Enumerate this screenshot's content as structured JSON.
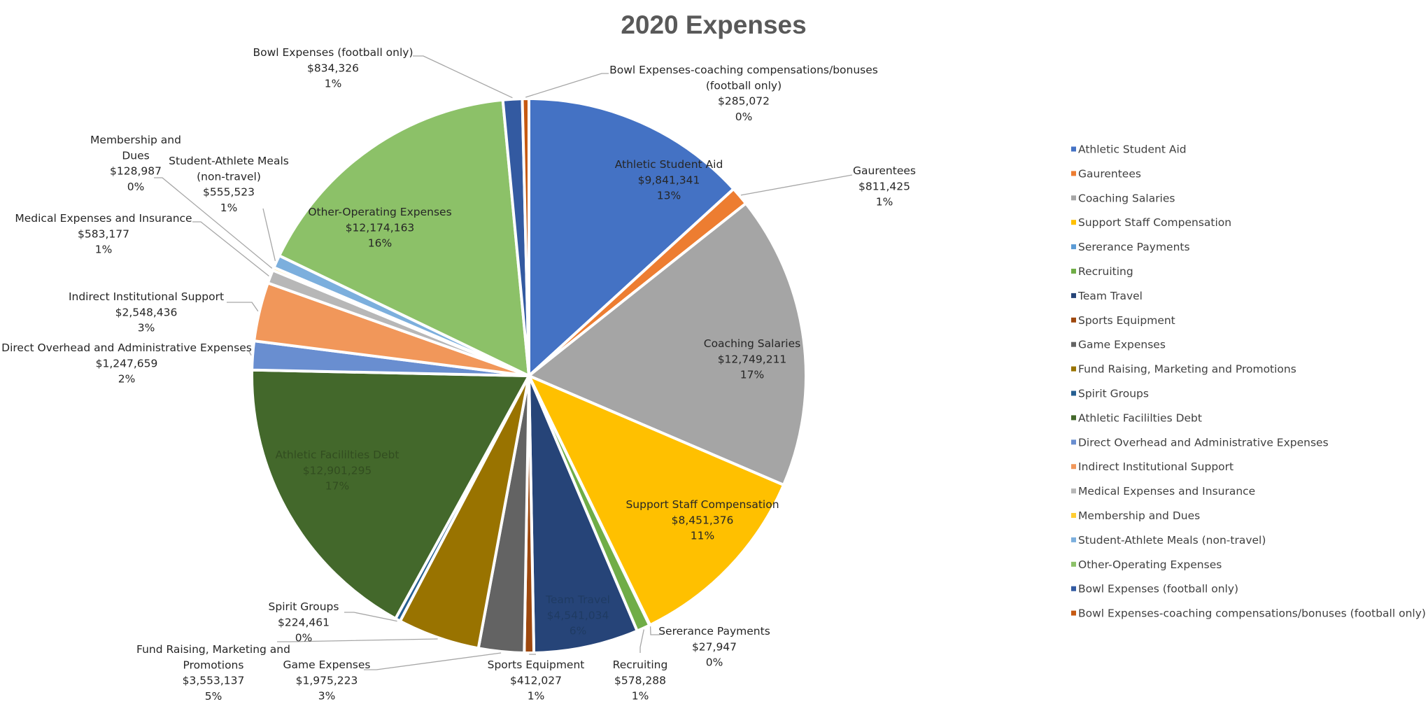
{
  "chart_data": {
    "type": "pie",
    "title": "2020 Expenses",
    "legend_position": "right",
    "slices": [
      {
        "name": "Athletic Student Aid",
        "value": 9841341,
        "value_label": "$9,841,341",
        "percent_label": "13%",
        "color": "#4472C4"
      },
      {
        "name": "Gaurentees",
        "value": 811425,
        "value_label": "$811,425",
        "percent_label": "1%",
        "color": "#ED7D31"
      },
      {
        "name": "Coaching Salaries",
        "value": 12749211,
        "value_label": "$12,749,211",
        "percent_label": "17%",
        "color": "#A5A5A5"
      },
      {
        "name": "Support Staff Compensation",
        "value": 8451376,
        "value_label": "$8,451,376",
        "percent_label": "11%",
        "color": "#FFC000"
      },
      {
        "name": "Sererance Payments",
        "value": 27947,
        "value_label": "$27,947",
        "percent_label": "0%",
        "color": "#5B9BD5"
      },
      {
        "name": "Recruiting",
        "value": 578288,
        "value_label": "$578,288",
        "percent_label": "1%",
        "color": "#70AD47"
      },
      {
        "name": "Team Travel",
        "value": 4541034,
        "value_label": "$4,541,034",
        "percent_label": "6%",
        "color": "#264478"
      },
      {
        "name": "Sports Equipment",
        "value": 412027,
        "value_label": "$412,027",
        "percent_label": "1%",
        "color": "#9E480E"
      },
      {
        "name": "Game Expenses",
        "value": 1975223,
        "value_label": "$1,975,223",
        "percent_label": "3%",
        "color": "#636363"
      },
      {
        "name": "Fund Raising, Marketing and Promotions",
        "value": 3553137,
        "value_label": "$3,553,137",
        "percent_label": "5%",
        "color": "#997300"
      },
      {
        "name": "Spirit Groups",
        "value": 224461,
        "value_label": "$224,461",
        "percent_label": "0%",
        "color": "#255E91"
      },
      {
        "name": "Athletic Facililties Debt",
        "value": 12901295,
        "value_label": "$12,901,295",
        "percent_label": "17%",
        "color": "#43682B"
      },
      {
        "name": "Direct Overhead and Administrative Expenses",
        "value": 1247659,
        "value_label": "$1,247,659",
        "percent_label": "2%",
        "color": "#698ED0"
      },
      {
        "name": "Indirect Institutional Support",
        "value": 2548436,
        "value_label": "$2,548,436",
        "percent_label": "3%",
        "color": "#F1975A"
      },
      {
        "name": "Medical Expenses and Insurance",
        "value": 583177,
        "value_label": "$583,177",
        "percent_label": "1%",
        "color": "#B7B7B7"
      },
      {
        "name": "Membership and Dues",
        "value": 128987,
        "value_label": "$128,987",
        "percent_label": "0%",
        "color": "#FFCD33"
      },
      {
        "name": "Student-Athlete Meals (non-travel)",
        "value": 555523,
        "value_label": "$555,523",
        "percent_label": "1%",
        "color": "#7CAFDD"
      },
      {
        "name": "Other-Operating Expenses",
        "value": 12174163,
        "value_label": "$12,174,163",
        "percent_label": "16%",
        "color": "#8CC168"
      },
      {
        "name": "Bowl Expenses (football only)",
        "value": 834326,
        "value_label": "$834,326",
        "percent_label": "1%",
        "color": "#335AA1"
      },
      {
        "name": "Bowl Expenses-coaching compensations/bonuses (football only)",
        "value": 285072,
        "value_label": "$285,072",
        "percent_label": "0%",
        "color": "#C65911"
      }
    ]
  }
}
